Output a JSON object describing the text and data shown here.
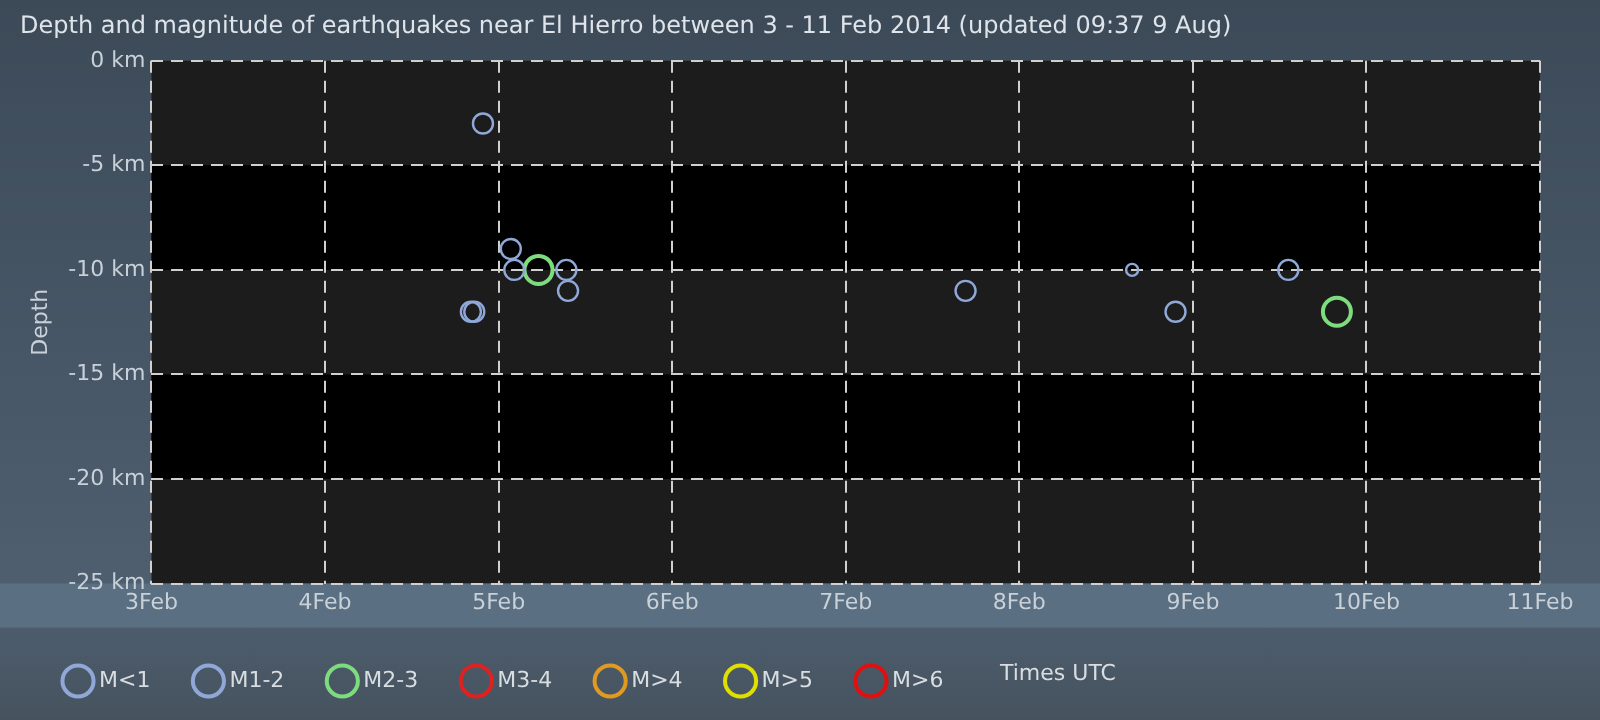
{
  "chart_data": {
    "type": "scatter",
    "title": "Depth and magnitude of earthquakes near El Hierro between 3 - 11 Feb 2014 (updated 09:37 9 Aug)",
    "ylabel": "Depth",
    "xlim": [
      "2014-02-03",
      "2014-02-11"
    ],
    "xticks": [
      {
        "value": "2014-02-03",
        "label": "3Feb"
      },
      {
        "value": "2014-02-04",
        "label": "4Feb"
      },
      {
        "value": "2014-02-05",
        "label": "5Feb"
      },
      {
        "value": "2014-02-06",
        "label": "6Feb"
      },
      {
        "value": "2014-02-07",
        "label": "7Feb"
      },
      {
        "value": "2014-02-08",
        "label": "8Feb"
      },
      {
        "value": "2014-02-09",
        "label": "9Feb"
      },
      {
        "value": "2014-02-10",
        "label": "10Feb"
      },
      {
        "value": "2014-02-11",
        "label": "11Feb"
      }
    ],
    "ylim": [
      -25,
      0
    ],
    "yticks": [
      {
        "value": -25,
        "label": "-25 km"
      },
      {
        "value": -20,
        "label": "-20 km"
      },
      {
        "value": -15,
        "label": "-15 km"
      },
      {
        "value": -10,
        "label": "-10 km"
      },
      {
        "value": -5,
        "label": "-5 km"
      },
      {
        "value": 0,
        "label": "0 km"
      }
    ],
    "grid": true,
    "legend": "bottom",
    "marker": "circle",
    "annotations": [
      "Times UTC"
    ],
    "series": [
      {
        "name": "M<1",
        "color": "#8fa8d8",
        "x": [
          "2014-02-08T15:36"
        ],
        "values": [
          -10
        ]
      },
      {
        "name": "M1-2",
        "color": "#8fa8d8",
        "x": [
          "2014-02-04T21:50",
          "2014-02-05T01:41",
          "2014-02-05T02:10",
          "2014-02-05T09:22",
          "2014-02-05T09:36",
          "2014-02-04T20:10",
          "2014-02-04T20:38",
          "2014-02-07T16:34",
          "2014-02-08T21:36",
          "2014-02-09T13:12"
        ],
        "values": [
          -3,
          -9,
          -10,
          -10,
          -11,
          -12,
          -12,
          -11,
          -12,
          -10
        ]
      },
      {
        "name": "M2-3",
        "color": "#7ddc7d",
        "x": [
          "2014-02-05T05:31",
          "2014-02-09T19:55"
        ],
        "values": [
          -10,
          -12
        ]
      },
      {
        "name": "M3-4",
        "color": "#dd2222"
      },
      {
        "name": "M>4",
        "color": "#e09a22"
      },
      {
        "name": "M>5",
        "color": "#e0e000"
      },
      {
        "name": "M>6",
        "color": "#e01010"
      }
    ]
  }
}
